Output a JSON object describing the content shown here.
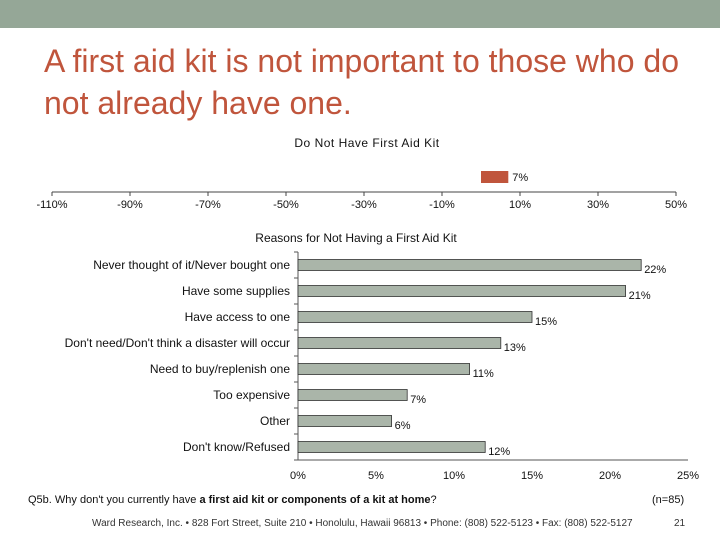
{
  "slide": {
    "title": "A first aid kit is not important to those who do not already have one.",
    "accent_color": "#c0553c",
    "bar_color": "#aab5a9"
  },
  "chart_data": [
    {
      "type": "bar",
      "orientation": "horizontal",
      "title": "Do Not Have First Aid Kit",
      "categories": [
        ""
      ],
      "values": [
        7
      ],
      "value_labels": [
        "7%"
      ],
      "x_ticks": [
        -110,
        -90,
        -70,
        -50,
        -30,
        -10,
        10,
        30,
        50
      ],
      "x_tick_labels": [
        "-110%",
        "-90%",
        "-70%",
        "-50%",
        "-30%",
        "-10%",
        "10%",
        "30%",
        "50%"
      ],
      "xlim": [
        -110,
        50
      ],
      "color": "#c0553c"
    },
    {
      "type": "bar",
      "orientation": "horizontal",
      "title": "Reasons for Not Having a First Aid Kit",
      "categories": [
        "Never thought of it/Never bought one",
        "Have some supplies",
        "Have access to one",
        "Don't need/Don't think a disaster will occur",
        "Need to buy/replenish one",
        "Too expensive",
        "Other",
        "Don't know/Refused"
      ],
      "values": [
        22,
        21,
        15,
        13,
        11,
        7,
        6,
        12
      ],
      "value_labels": [
        "22%",
        "21%",
        "15%",
        "13%",
        "11%",
        "7%",
        "6%",
        "12%"
      ],
      "x_ticks": [
        0,
        5,
        10,
        15,
        20,
        25
      ],
      "x_tick_labels": [
        "0%",
        "5%",
        "10%",
        "15%",
        "20%",
        "25%"
      ],
      "xlim": [
        0,
        25
      ],
      "color": "#aab5a9"
    }
  ],
  "footer": {
    "question_prefix": "Q5b. Why don't you currently have ",
    "question_bold": "a first aid kit or components of a kit at home",
    "question_suffix": "?",
    "sample": "(n=85)",
    "address": "Ward Research, Inc. • 828 Fort Street, Suite 210 • Honolulu, Hawaii 96813 • Phone: (808) 522-5123 • Fax: (808) 522-5127",
    "page_number": "21"
  }
}
